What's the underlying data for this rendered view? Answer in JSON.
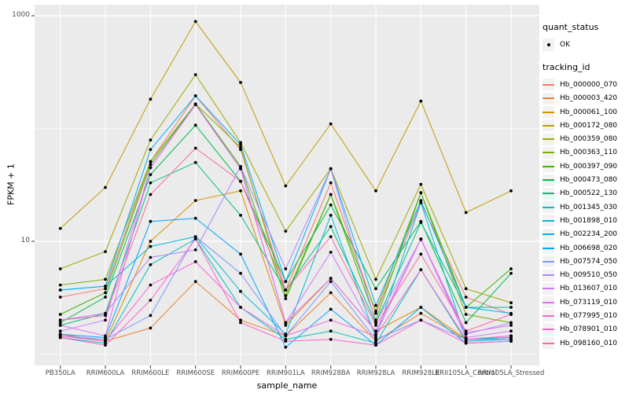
{
  "chart_data": {
    "type": "line",
    "title": "",
    "xlabel": "sample_name",
    "ylabel": "FPKM + 1",
    "y_scale": "log10",
    "ylim": [
      1,
      1000
    ],
    "y_tick_labels": [
      "1000",
      "10"
    ],
    "y_tick_values": [
      1000,
      10
    ],
    "y_gridlines": [
      1,
      10,
      100,
      1000
    ],
    "legend": {
      "position": "right",
      "quant_status_title": "quant_status",
      "quant_status_items": [
        "OK"
      ],
      "tracking_id_title": "tracking_id"
    },
    "colors": {
      "panel_bg": "#EBEBEB",
      "grid": "#FFFFFF",
      "point": "#000000",
      "axis_text": "#4D4D4D",
      "legend_key_bg": "#F2F2F2"
    },
    "categories": [
      "PB350LA",
      "RRIM600LA",
      "RRIM600LE",
      "RRIM600SE",
      "RRIM600PE",
      "RRIM901LA",
      "RRIM928BA",
      "RRIM928LA",
      "RRIM928LE",
      "RRII105LA_Control",
      "RRII105LA_Stressed"
    ],
    "series": [
      {
        "name": "Hb_000000_070",
        "color": "#F8766D",
        "values": [
          3.2,
          3.8,
          51,
          195,
          65,
          3.7,
          33,
          2.3,
          22,
          3.2,
          2.25
        ]
      },
      {
        "name": "Hb_000003_420",
        "color": "#EA8331",
        "values": [
          1.5,
          1.3,
          1.7,
          4.4,
          2.0,
          1.45,
          3.5,
          1.3,
          2.3,
          1.35,
          1.4
        ]
      },
      {
        "name": "Hb_000061_100",
        "color": "#D89000",
        "values": [
          1.45,
          1.3,
          10,
          23,
          28,
          1.8,
          4.7,
          1.6,
          2.6,
          1.35,
          1.45
        ]
      },
      {
        "name": "Hb_000172_080",
        "color": "#C09B00",
        "values": [
          13,
          30,
          182,
          890,
          256,
          31,
          110,
          28,
          175,
          18,
          28
        ]
      },
      {
        "name": "Hb_000359_080",
        "color": "#A3A500",
        "values": [
          5.7,
          8.1,
          79,
          300,
          75,
          12.3,
          44,
          4.6,
          32,
          3.8,
          2.85
        ]
      },
      {
        "name": "Hb_000363_110",
        "color": "#7CAE00",
        "values": [
          4.1,
          4.6,
          51,
          165,
          68,
          3.3,
          26,
          2.4,
          27,
          2.25,
          1.9
        ]
      },
      {
        "name": "Hb_000397_090",
        "color": "#39B600",
        "values": [
          2.25,
          3.5,
          48,
          165,
          46,
          3.1,
          26,
          2.0,
          27,
          2.6,
          5.7
        ]
      },
      {
        "name": "Hb_000473_080",
        "color": "#00BB4E",
        "values": [
          1.9,
          3.2,
          39,
          107,
          34,
          4.4,
          21,
          3.8,
          15,
          1.9,
          5.2
        ]
      },
      {
        "name": "Hb_000522_130",
        "color": "#00C087",
        "values": [
          1.8,
          2.3,
          33,
          50,
          17,
          3.7,
          13.5,
          1.9,
          14.7,
          2.6,
          2.6
        ]
      },
      {
        "name": "Hb_001345_030",
        "color": "#00C0B8",
        "values": [
          1.4,
          1.25,
          6.2,
          10.5,
          2.6,
          1.35,
          1.6,
          1.25,
          5.6,
          1.3,
          1.35
        ]
      },
      {
        "name": "Hb_001898_010",
        "color": "#00BCD8",
        "values": [
          3.7,
          4.0,
          9.0,
          11,
          3.6,
          1.5,
          17,
          1.4,
          22,
          1.35,
          1.4
        ]
      },
      {
        "name": "Hb_002234_200",
        "color": "#00B0F6",
        "values": [
          3.7,
          4.0,
          65,
          195,
          72,
          4.4,
          44,
          2.7,
          23,
          2.6,
          2.3
        ]
      },
      {
        "name": "Hb_006698_020",
        "color": "#00A5FF",
        "values": [
          1.5,
          1.4,
          15,
          16,
          7.7,
          1.15,
          2.5,
          1.2,
          2.6,
          1.25,
          1.3
        ]
      },
      {
        "name": "Hb_007574_050",
        "color": "#7997FF",
        "values": [
          1.45,
          1.35,
          2.2,
          11,
          5.2,
          1.45,
          4.4,
          1.35,
          2.0,
          1.35,
          1.35
        ]
      },
      {
        "name": "Hb_009510_050",
        "color": "#AC88FF",
        "values": [
          2.0,
          2.3,
          7.2,
          8.4,
          46,
          5.7,
          44,
          1.9,
          10.4,
          1.5,
          1.9
        ]
      },
      {
        "name": "Hb_013607_010",
        "color": "#CF78FF",
        "values": [
          1.6,
          2.0,
          45,
          163,
          44,
          1.9,
          8.0,
          1.5,
          10.5,
          1.4,
          1.6
        ]
      },
      {
        "name": "Hb_073119_010",
        "color": "#E76BF3",
        "values": [
          1.8,
          1.45,
          45,
          163,
          44,
          1.9,
          4.7,
          1.6,
          10.5,
          1.55,
          1.8
        ]
      },
      {
        "name": "Hb_077995_010",
        "color": "#F763E0",
        "values": [
          1.45,
          1.3,
          4.1,
          6.6,
          2.6,
          1.45,
          2.0,
          1.45,
          5.6,
          1.35,
          1.45
        ]
      },
      {
        "name": "Hb_078901_010",
        "color": "#FF61C9",
        "values": [
          1.4,
          1.2,
          3.0,
          10.5,
          1.9,
          1.3,
          1.35,
          1.2,
          2.0,
          1.25,
          1.3
        ]
      },
      {
        "name": "Hb_098160_010",
        "color": "#FF68A1",
        "values": [
          2.0,
          2.2,
          26,
          67,
          34,
          3.7,
          11,
          1.8,
          7.7,
          1.6,
          2.25
        ]
      }
    ]
  }
}
